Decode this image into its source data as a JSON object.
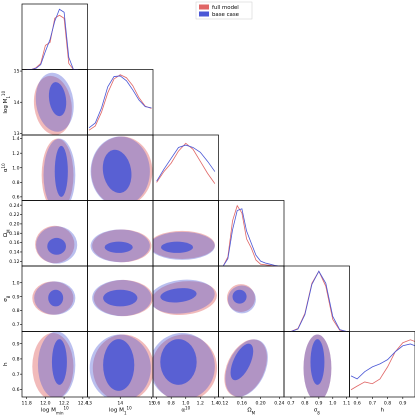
{
  "chart_data": {
    "type": "corner",
    "title": "",
    "colors": {
      "full": "#e06666",
      "base": "#4a57d6"
    },
    "legend": {
      "placement": "top-right",
      "entries": [
        {
          "name": "full model",
          "color": "#e06666"
        },
        {
          "name": "base case",
          "color": "#4a57d6"
        }
      ]
    },
    "parameters": [
      {
        "label": "log M_min^{10}",
        "range": [
          11.75,
          12.45
        ],
        "ticks": [
          11.8,
          12.0,
          12.2,
          12.4
        ],
        "tick_labels": [
          "11.8",
          "12.0",
          "12.2",
          "12.4"
        ]
      },
      {
        "label": "log M_1^{10}",
        "range": [
          12.95,
          15.05
        ],
        "ticks": [
          13,
          14,
          15
        ],
        "tick_labels": [
          "13",
          "14",
          "15"
        ],
        "y_ticks": [
          13,
          14,
          15
        ],
        "y_tick_labels": [
          "13",
          "14",
          "15"
        ]
      },
      {
        "label": "α^{10}",
        "range": [
          0.55,
          1.45
        ],
        "ticks": [
          0.6,
          0.8,
          1.0,
          1.2,
          1.4
        ],
        "tick_labels": [
          "0.6",
          "0.8",
          "1.0",
          "1.2",
          "1.4"
        ],
        "y_ticks": [
          0.6,
          0.8,
          1.0,
          1.2,
          1.4
        ],
        "y_tick_labels": [
          "0.6",
          "0.8",
          "1.0",
          "1.2",
          "1.4"
        ]
      },
      {
        "label": "Ω_M",
        "range": [
          0.11,
          0.25
        ],
        "ticks": [
          0.12,
          0.16,
          0.2,
          0.24
        ],
        "tick_labels": [
          "0.12",
          "0.16",
          "0.20",
          "0.24"
        ],
        "y_ticks": [
          0.12,
          0.14,
          0.16,
          0.18,
          0.2,
          0.22,
          0.24
        ],
        "y_tick_labels": [
          "0.12",
          "0.14",
          "0.16",
          "0.18",
          "0.20",
          "0.22",
          "0.24"
        ]
      },
      {
        "label": "σ_8",
        "range": [
          0.65,
          1.12
        ],
        "ticks": [
          0.7,
          0.8,
          0.9,
          1.0,
          1.1
        ],
        "tick_labels": [
          "0.7",
          "0.8",
          "0.9",
          "1.0",
          "1.1"
        ],
        "y_ticks": [
          0.7,
          0.8,
          0.9,
          1.0
        ],
        "y_tick_labels": [
          "0.7",
          "0.8",
          "0.9",
          "1.0"
        ]
      },
      {
        "label": "h",
        "range": [
          0.55,
          0.98
        ],
        "ticks": [
          0.6,
          0.7,
          0.8,
          0.9
        ],
        "tick_labels": [
          "0.6",
          "0.7",
          "0.8",
          "0.9"
        ],
        "y_ticks": [
          0.6,
          0.7,
          0.8,
          0.9
        ],
        "y_tick_labels": [
          "0.6",
          "0.7",
          "0.8",
          "0.9"
        ]
      }
    ],
    "marginals": [
      {
        "param": 0,
        "x": [
          11.8,
          11.85,
          11.9,
          11.95,
          12.0,
          12.05,
          12.1,
          12.15,
          12.2,
          12.25,
          12.3,
          12.35
        ],
        "full": [
          0.0,
          0.0,
          0.03,
          0.1,
          0.4,
          0.45,
          0.85,
          0.9,
          0.85,
          0.1,
          0.0,
          0.0
        ],
        "base": [
          0.0,
          0.0,
          0.02,
          0.08,
          0.3,
          0.5,
          0.8,
          1.0,
          0.95,
          0.2,
          0.0,
          0.0
        ]
      },
      {
        "param": 1,
        "x": [
          13.0,
          13.2,
          13.4,
          13.6,
          13.8,
          14.0,
          14.2,
          14.4,
          14.6,
          14.8,
          15.0
        ],
        "full": [
          0.08,
          0.15,
          0.38,
          0.7,
          0.93,
          1.0,
          0.95,
          0.82,
          0.62,
          0.48,
          0.44
        ],
        "base": [
          0.12,
          0.2,
          0.45,
          0.8,
          0.97,
          0.98,
          0.9,
          0.75,
          0.58,
          0.47,
          0.45
        ]
      },
      {
        "param": 2,
        "x": [
          0.6,
          0.7,
          0.8,
          0.9,
          1.0,
          1.1,
          1.2,
          1.3,
          1.4
        ],
        "full": [
          0.3,
          0.48,
          0.62,
          0.82,
          0.95,
          0.85,
          0.65,
          0.45,
          0.28
        ],
        "base": [
          0.32,
          0.52,
          0.7,
          0.88,
          0.92,
          0.88,
          0.8,
          0.65,
          0.48
        ]
      },
      {
        "param": 3,
        "x": [
          0.12,
          0.13,
          0.14,
          0.15,
          0.16,
          0.17,
          0.18,
          0.19,
          0.2,
          0.21,
          0.22,
          0.23,
          0.24
        ],
        "full": [
          0.0,
          0.15,
          0.75,
          1.0,
          0.88,
          0.45,
          0.3,
          0.1,
          0.03,
          0.02,
          0.01,
          0.0,
          0.0
        ],
        "base": [
          0.0,
          0.12,
          0.6,
          0.92,
          0.95,
          0.58,
          0.38,
          0.18,
          0.08,
          0.05,
          0.03,
          0.01,
          0.0
        ]
      },
      {
        "param": 4,
        "x": [
          0.7,
          0.75,
          0.8,
          0.85,
          0.9,
          0.95,
          1.0,
          1.05,
          1.1
        ],
        "full": [
          0.0,
          0.05,
          0.3,
          0.8,
          1.0,
          0.75,
          0.2,
          0.02,
          0.0
        ],
        "base": [
          0.0,
          0.04,
          0.28,
          0.78,
          1.0,
          0.8,
          0.25,
          0.03,
          0.0
        ]
      },
      {
        "param": 5,
        "x": [
          0.56,
          0.6,
          0.65,
          0.7,
          0.75,
          0.8,
          0.85,
          0.9,
          0.95,
          0.98
        ],
        "full": [
          0.12,
          0.18,
          0.25,
          0.22,
          0.3,
          0.5,
          0.75,
          0.9,
          0.95,
          0.92
        ],
        "base": [
          0.35,
          0.3,
          0.42,
          0.5,
          0.55,
          0.62,
          0.75,
          0.85,
          0.88,
          0.85
        ]
      }
    ],
    "joint_contours": [
      {
        "x": 0,
        "y": 1,
        "base_outer": {
          "cx": 12.1,
          "cy": 14.0,
          "rx": 0.2,
          "ry": 0.95,
          "rot": -8
        },
        "base_inner": {
          "cx": 12.13,
          "cy": 14.1,
          "rx": 0.09,
          "ry": 0.55,
          "rot": -8
        },
        "full_outer": {
          "cx": 12.08,
          "cy": 13.9,
          "rx": 0.2,
          "ry": 0.95,
          "rot": -8
        }
      },
      {
        "x": 0,
        "y": 2,
        "base_outer": {
          "cx": 12.15,
          "cy": 0.9,
          "rx": 0.17,
          "ry": 0.5,
          "rot": 0
        },
        "base_inner": {
          "cx": 12.17,
          "cy": 0.95,
          "rx": 0.07,
          "ry": 0.35,
          "rot": 0
        },
        "full_outer": {
          "cx": 12.13,
          "cy": 0.9,
          "rx": 0.17,
          "ry": 0.5,
          "rot": 0
        }
      },
      {
        "x": 0,
        "y": 3,
        "base_outer": {
          "cx": 12.12,
          "cy": 0.155,
          "rx": 0.22,
          "ry": 0.04,
          "rot": 0
        },
        "base_inner": {
          "cx": 12.12,
          "cy": 0.152,
          "rx": 0.1,
          "ry": 0.018,
          "rot": 0
        },
        "full_outer": {
          "cx": 12.1,
          "cy": 0.156,
          "rx": 0.21,
          "ry": 0.04,
          "rot": 0
        }
      },
      {
        "x": 0,
        "y": 4,
        "base_outer": {
          "cx": 12.1,
          "cy": 0.89,
          "rx": 0.22,
          "ry": 0.12,
          "rot": 0
        },
        "base_inner": {
          "cx": 12.11,
          "cy": 0.89,
          "rx": 0.08,
          "ry": 0.06,
          "rot": 0
        },
        "full_outer": {
          "cx": 12.08,
          "cy": 0.89,
          "rx": 0.22,
          "ry": 0.12,
          "rot": 0
        }
      },
      {
        "x": 0,
        "y": 5,
        "base_outer": {
          "cx": 12.12,
          "cy": 0.76,
          "rx": 0.2,
          "ry": 0.22,
          "rot": 0
        },
        "base_inner": {
          "cx": 12.15,
          "cy": 0.78,
          "rx": 0.08,
          "ry": 0.15,
          "rot": 0
        },
        "full_outer": {
          "cx": 12.08,
          "cy": 0.75,
          "rx": 0.22,
          "ry": 0.22,
          "rot": 0
        }
      },
      {
        "x": 1,
        "y": 2,
        "base_outer": {
          "cx": 14.0,
          "cy": 0.95,
          "rx": 0.95,
          "ry": 0.48,
          "rot": 0
        },
        "base_inner": {
          "cx": 13.9,
          "cy": 0.95,
          "rx": 0.45,
          "ry": 0.3,
          "rot": -10
        },
        "full_outer": {
          "cx": 14.05,
          "cy": 0.95,
          "rx": 0.98,
          "ry": 0.48,
          "rot": 0
        }
      },
      {
        "x": 1,
        "y": 3,
        "base_outer": {
          "cx": 14.0,
          "cy": 0.153,
          "rx": 0.95,
          "ry": 0.035,
          "rot": 0
        },
        "base_inner": {
          "cx": 13.95,
          "cy": 0.15,
          "rx": 0.45,
          "ry": 0.012,
          "rot": 0
        },
        "full_outer": {
          "cx": 14.05,
          "cy": 0.153,
          "rx": 0.95,
          "ry": 0.035,
          "rot": 0
        }
      },
      {
        "x": 1,
        "y": 4,
        "base_outer": {
          "cx": 14.05,
          "cy": 0.89,
          "rx": 0.95,
          "ry": 0.13,
          "rot": 0
        },
        "base_inner": {
          "cx": 14.0,
          "cy": 0.89,
          "rx": 0.55,
          "ry": 0.06,
          "rot": 0
        },
        "full_outer": {
          "cx": 14.1,
          "cy": 0.89,
          "rx": 0.95,
          "ry": 0.13,
          "rot": 0
        }
      },
      {
        "x": 1,
        "y": 5,
        "base_outer": {
          "cx": 14.0,
          "cy": 0.74,
          "rx": 0.98,
          "ry": 0.22,
          "rot": 0
        },
        "base_inner": {
          "cx": 13.95,
          "cy": 0.76,
          "rx": 0.5,
          "ry": 0.17,
          "rot": 0
        },
        "full_outer": {
          "cx": 14.1,
          "cy": 0.74,
          "rx": 0.98,
          "ry": 0.22,
          "rot": 0
        }
      },
      {
        "x": 2,
        "y": 3,
        "base_outer": {
          "cx": 0.95,
          "cy": 0.153,
          "rx": 0.45,
          "ry": 0.03,
          "rot": 0
        },
        "base_inner": {
          "cx": 0.88,
          "cy": 0.15,
          "rx": 0.22,
          "ry": 0.012,
          "rot": 0
        },
        "full_outer": {
          "cx": 0.95,
          "cy": 0.155,
          "rx": 0.45,
          "ry": 0.03,
          "rot": 0
        }
      },
      {
        "x": 2,
        "y": 4,
        "base_outer": {
          "cx": 0.95,
          "cy": 0.9,
          "rx": 0.45,
          "ry": 0.12,
          "rot": -6
        },
        "base_inner": {
          "cx": 0.9,
          "cy": 0.91,
          "rx": 0.25,
          "ry": 0.05,
          "rot": -6
        },
        "full_outer": {
          "cx": 0.98,
          "cy": 0.89,
          "rx": 0.45,
          "ry": 0.12,
          "rot": -6
        }
      },
      {
        "x": 2,
        "y": 5,
        "base_outer": {
          "cx": 0.95,
          "cy": 0.75,
          "rx": 0.45,
          "ry": 0.22,
          "rot": 0
        },
        "base_inner": {
          "cx": 0.9,
          "cy": 0.78,
          "rx": 0.25,
          "ry": 0.15,
          "rot": 0
        },
        "full_outer": {
          "cx": 0.98,
          "cy": 0.74,
          "rx": 0.45,
          "ry": 0.22,
          "rot": 0
        }
      },
      {
        "x": 3,
        "y": 4,
        "base_outer": {
          "cx": 0.16,
          "cy": 0.88,
          "rx": 0.03,
          "ry": 0.1,
          "rot": 0
        },
        "base_inner": {
          "cx": 0.155,
          "cy": 0.9,
          "rx": 0.015,
          "ry": 0.05,
          "rot": 0
        },
        "full_outer": {
          "cx": 0.158,
          "cy": 0.89,
          "rx": 0.03,
          "ry": 0.1,
          "rot": 0
        }
      },
      {
        "x": 3,
        "y": 5,
        "base_outer": {
          "cx": 0.17,
          "cy": 0.74,
          "rx": 0.04,
          "ry": 0.2,
          "rot": 25
        },
        "base_inner": {
          "cx": 0.16,
          "cy": 0.78,
          "rx": 0.018,
          "ry": 0.13,
          "rot": 25
        },
        "full_outer": {
          "cx": 0.168,
          "cy": 0.74,
          "rx": 0.04,
          "ry": 0.2,
          "rot": 25
        }
      },
      {
        "x": 4,
        "y": 5,
        "base_outer": {
          "cx": 0.89,
          "cy": 0.74,
          "rx": 0.1,
          "ry": 0.22,
          "rot": 0
        },
        "base_inner": {
          "cx": 0.89,
          "cy": 0.78,
          "rx": 0.05,
          "ry": 0.15,
          "rot": 0
        },
        "full_outer": {
          "cx": 0.89,
          "cy": 0.74,
          "rx": 0.1,
          "ry": 0.22,
          "rot": 0
        }
      }
    ]
  }
}
